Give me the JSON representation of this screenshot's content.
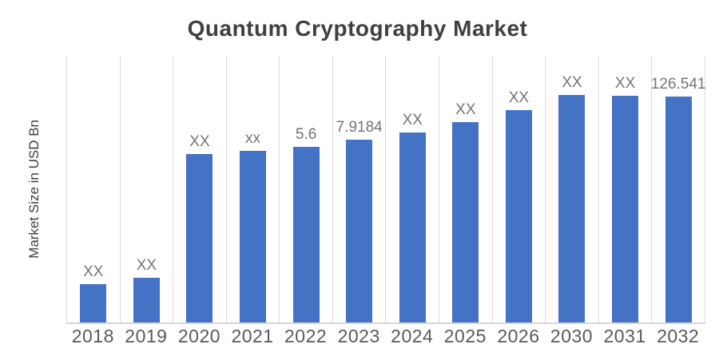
{
  "chart_data": {
    "type": "bar",
    "title": "Quantum Cryptography Market",
    "ylabel": "Market Size in USD Bn",
    "xlabel": "",
    "categories": [
      "2018",
      "2019",
      "2020",
      "2021",
      "2022",
      "2023",
      "2024",
      "2025",
      "2026",
      "2030",
      "2031",
      "2032"
    ],
    "bar_labels": [
      "XX",
      "XX",
      "XX",
      "xx",
      "5.6",
      "7.9184",
      "XX",
      "XX",
      "XX",
      "XX",
      "XX",
      "126.541"
    ],
    "labeled_values": {
      "2022": 5.6,
      "2023": 7.9184,
      "2032": 126.541
    },
    "bar_heights_pct_of_plot": [
      14.4,
      16.8,
      63.2,
      64.4,
      65.9,
      68.6,
      71.3,
      75.1,
      79.6,
      85.3,
      85.0,
      84.7
    ],
    "series": [
      {
        "name": "Market Size in USD Bn",
        "value_labels": [
          "XX",
          "XX",
          "XX",
          "xx",
          "5.6",
          "7.9184",
          "XX",
          "XX",
          "XX",
          "XX",
          "XX",
          "126.541"
        ]
      }
    ],
    "grid": "vertical-gridlines-only",
    "legend_position": "none",
    "colors": {
      "bar": "#4472c4",
      "gridline": "#d9d9d9",
      "axis_line": "#d6d6d6",
      "title_text": "#404040",
      "axis_label_text": "#404040",
      "tick_label_text": "#595959",
      "bar_label_text": "#757575",
      "background": "#ffffff"
    }
  }
}
